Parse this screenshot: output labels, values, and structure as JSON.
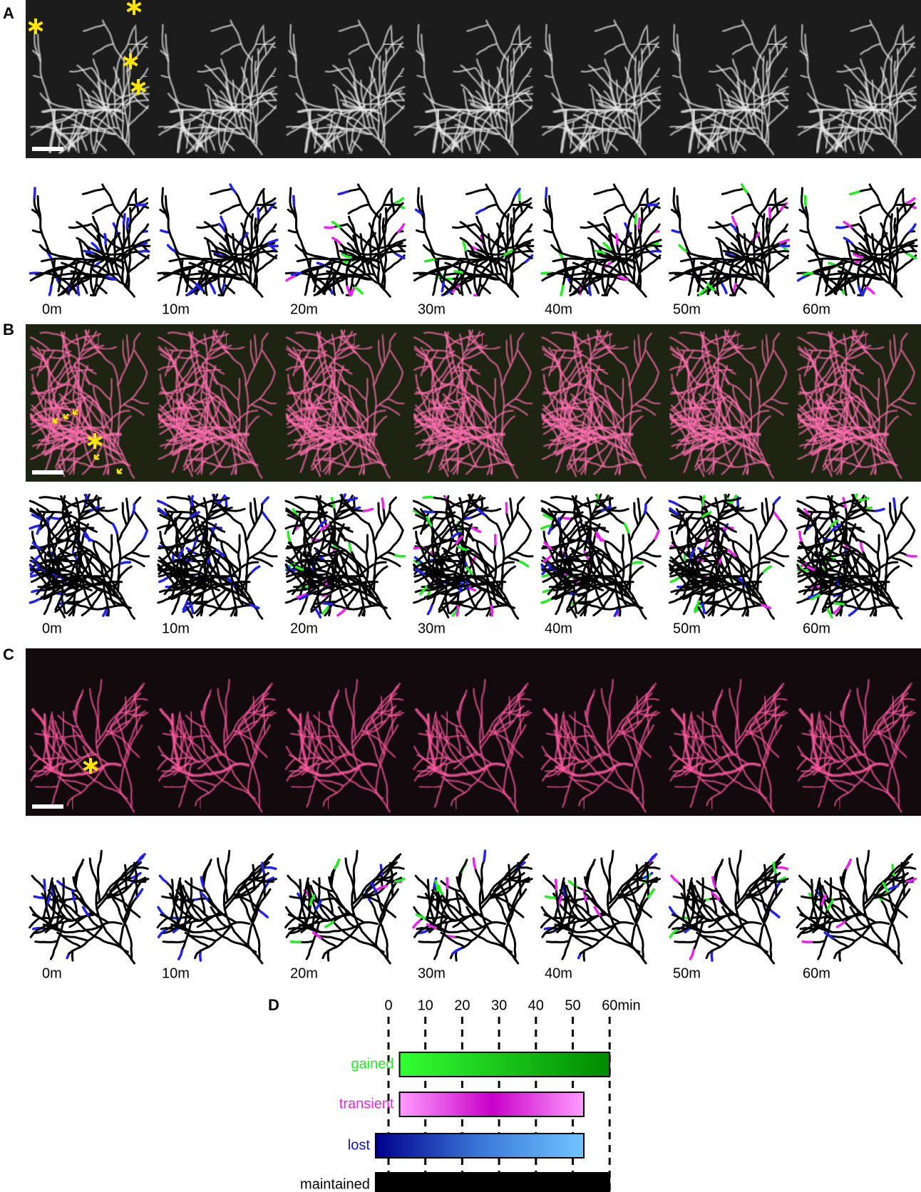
{
  "panels": [
    {
      "label": "A",
      "time_labels": [
        "0m",
        "10m",
        "20m",
        "30m",
        "40m",
        "50m",
        "60m"
      ]
    },
    {
      "label": "B",
      "time_labels": [
        "0m",
        "10m",
        "20m",
        "30m",
        "40m",
        "50m",
        "60m"
      ]
    },
    {
      "label": "C",
      "time_labels": [
        "0m",
        "10m",
        "20m",
        "30m",
        "40m",
        "50m",
        "60m"
      ]
    }
  ],
  "timeline": {
    "label": "D",
    "ticks": [
      0,
      10,
      20,
      30,
      40,
      50,
      {
        "value": 60,
        "label": "60min"
      }
    ],
    "rows": [
      {
        "label": "gained",
        "color": "#22ee22"
      },
      {
        "label": "transient",
        "color": "#ee22ee"
      },
      {
        "label": "lost",
        "color": "#1111cc"
      },
      {
        "label": "maintained",
        "color": "#000000"
      }
    ]
  }
}
